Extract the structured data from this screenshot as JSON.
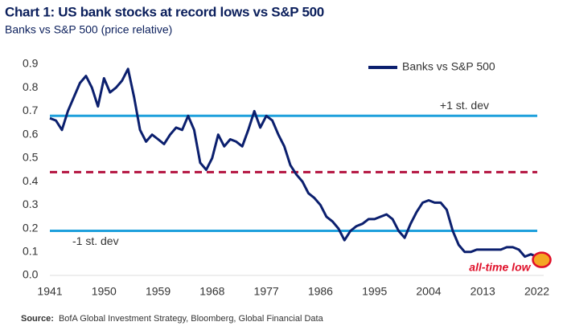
{
  "chart_data": {
    "type": "line",
    "title": "Chart 1: US bank stocks at record lows vs S&P 500",
    "subtitle": "Banks vs S&P 500 (price relative)",
    "x": [
      1941,
      1942,
      1943,
      1944,
      1945,
      1946,
      1947,
      1948,
      1949,
      1950,
      1951,
      1952,
      1953,
      1954,
      1955,
      1956,
      1957,
      1958,
      1959,
      1960,
      1961,
      1962,
      1963,
      1964,
      1965,
      1966,
      1967,
      1968,
      1969,
      1970,
      1971,
      1972,
      1973,
      1974,
      1975,
      1976,
      1977,
      1978,
      1979,
      1980,
      1981,
      1982,
      1983,
      1984,
      1985,
      1986,
      1987,
      1988,
      1989,
      1990,
      1991,
      1992,
      1993,
      1994,
      1995,
      1996,
      1997,
      1998,
      1999,
      2000,
      2001,
      2002,
      2003,
      2004,
      2005,
      2006,
      2007,
      2008,
      2009,
      2010,
      2011,
      2012,
      2013,
      2014,
      2015,
      2016,
      2017,
      2018,
      2019,
      2020,
      2021,
      2022
    ],
    "series": [
      {
        "name": "Banks vs S&P 500",
        "color": "#0b1f6e",
        "values": [
          0.67,
          0.66,
          0.62,
          0.7,
          0.76,
          0.82,
          0.85,
          0.8,
          0.72,
          0.84,
          0.78,
          0.8,
          0.83,
          0.88,
          0.76,
          0.62,
          0.57,
          0.6,
          0.58,
          0.56,
          0.6,
          0.63,
          0.62,
          0.68,
          0.62,
          0.48,
          0.45,
          0.5,
          0.6,
          0.55,
          0.58,
          0.57,
          0.55,
          0.62,
          0.7,
          0.63,
          0.68,
          0.66,
          0.6,
          0.55,
          0.47,
          0.43,
          0.4,
          0.35,
          0.33,
          0.3,
          0.25,
          0.23,
          0.2,
          0.15,
          0.19,
          0.21,
          0.22,
          0.24,
          0.24,
          0.25,
          0.26,
          0.24,
          0.19,
          0.16,
          0.22,
          0.27,
          0.31,
          0.32,
          0.31,
          0.31,
          0.28,
          0.19,
          0.13,
          0.1,
          0.1,
          0.11,
          0.11,
          0.11,
          0.11,
          0.11,
          0.12,
          0.12,
          0.11,
          0.08,
          0.09,
          0.08
        ]
      }
    ],
    "xlim": [
      1941,
      2023
    ],
    "xticks": [
      1941,
      1950,
      1959,
      1968,
      1977,
      1986,
      1995,
      2004,
      2013,
      2022
    ],
    "ylim": [
      0,
      0.9
    ],
    "yticks": [
      {
        "value": 0,
        "label": "0.0"
      },
      0.1,
      0.2,
      0.3,
      0.4,
      0.5,
      0.6,
      0.7,
      0.8,
      0.9
    ],
    "reference_lines": [
      {
        "value": 0.68,
        "label": "+1 st. dev",
        "color": "#1ea0dc",
        "style": "solid"
      },
      {
        "value": 0.44,
        "color": "#b3123f",
        "style": "dashed"
      },
      {
        "value": 0.19,
        "label": "-1 st. dev",
        "color": "#1ea0dc",
        "style": "solid"
      }
    ],
    "annotation": "all-time low",
    "legend": "top-right",
    "source_label": "Source:",
    "source": "BofA Global Investment Strategy, Bloomberg, Global Financial Data"
  }
}
